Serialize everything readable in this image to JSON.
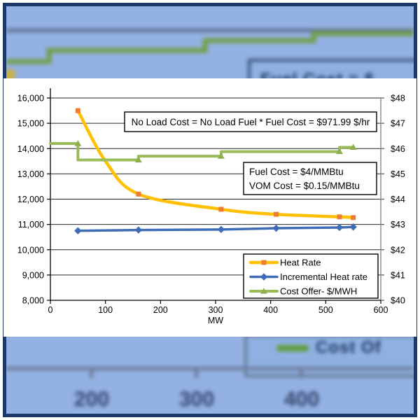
{
  "colors": {
    "page_background": "#ffffff",
    "slide_background": "#93b1e2",
    "slide_frame": "#1b3969",
    "heat_rate_line": "#FFC000",
    "heat_rate_marker": "#ED7D31",
    "incremental_line": "#3E6DB5",
    "cost_offer_line": "#9BBB59",
    "gridline": "#262626"
  },
  "chart_data": {
    "type": "line",
    "title": "",
    "xlabel": "MW",
    "x_axis": {
      "min": 0,
      "max": 600,
      "label": "MW",
      "ticks": [
        {
          "value": 0,
          "label": "0"
        },
        {
          "value": 100,
          "label": "100"
        },
        {
          "value": 200,
          "label": "200"
        },
        {
          "value": 300,
          "label": "300"
        },
        {
          "value": 400,
          "label": "400"
        },
        {
          "value": 500,
          "label": "500"
        },
        {
          "value": 600,
          "label": "600"
        }
      ]
    },
    "left_axis": {
      "min": 8000,
      "max": 16000,
      "ticks": [
        {
          "value": 16000,
          "label": "16,000"
        },
        {
          "value": 15000,
          "label": "15,000"
        },
        {
          "value": 14000,
          "label": "14,000"
        },
        {
          "value": 13000,
          "label": "13,000"
        },
        {
          "value": 12000,
          "label": "12,000"
        },
        {
          "value": 11000,
          "label": "11,000"
        },
        {
          "value": 10000,
          "label": "10,000"
        },
        {
          "value": 9000,
          "label": "9,000"
        },
        {
          "value": 8000,
          "label": "8,000"
        }
      ]
    },
    "right_axis": {
      "min": 40,
      "max": 48,
      "ticks": [
        {
          "value": 48,
          "label": "$48"
        },
        {
          "value": 47,
          "label": "$47"
        },
        {
          "value": 46,
          "label": "$46"
        },
        {
          "value": 45,
          "label": "$45"
        },
        {
          "value": 44,
          "label": "$44"
        },
        {
          "value": 43,
          "label": "$43"
        },
        {
          "value": 42,
          "label": "$42"
        },
        {
          "value": 41,
          "label": "$41"
        },
        {
          "value": 40,
          "label": "$40"
        }
      ]
    },
    "series": [
      {
        "name": "Heat Rate",
        "axis": "left",
        "color": "#FFC000",
        "line_width": 4.5,
        "marker": "square",
        "marker_color": "#ED7D31",
        "smooth": true,
        "points": [
          [
            50,
            15500
          ],
          [
            100,
            13500
          ],
          [
            160,
            12200
          ],
          [
            310,
            11600
          ],
          [
            410,
            11400
          ],
          [
            525,
            11300
          ],
          [
            550,
            11270
          ]
        ],
        "marker_points": [
          [
            50,
            15500
          ],
          [
            160,
            12200
          ],
          [
            310,
            11600
          ],
          [
            410,
            11400
          ],
          [
            525,
            11300
          ],
          [
            550,
            11270
          ]
        ]
      },
      {
        "name": "Incremental Heat rate",
        "axis": "left",
        "color": "#3E6DB5",
        "line_width": 3.5,
        "marker": "diamond",
        "marker_color": "#3E6DB5",
        "smooth": false,
        "points": [
          [
            50,
            10750
          ],
          [
            160,
            10780
          ],
          [
            310,
            10800
          ],
          [
            410,
            10850
          ],
          [
            525,
            10880
          ],
          [
            550,
            10900
          ]
        ],
        "marker_points": [
          [
            50,
            10750
          ],
          [
            160,
            10780
          ],
          [
            310,
            10800
          ],
          [
            410,
            10850
          ],
          [
            525,
            10880
          ],
          [
            550,
            10900
          ]
        ]
      },
      {
        "name": "Cost Offer- $/MWH",
        "axis": "right",
        "color": "#9BBB59",
        "line_width": 4,
        "marker": "triangle",
        "marker_color": "#8FAF4C",
        "smooth": false,
        "points": [
          [
            0,
            46.2
          ],
          [
            50,
            46.2
          ],
          [
            50,
            45.55
          ],
          [
            160,
            45.55
          ],
          [
            160,
            45.7
          ],
          [
            310,
            45.7
          ],
          [
            310,
            45.88
          ],
          [
            525,
            45.88
          ],
          [
            525,
            46.05
          ],
          [
            550,
            46.05
          ]
        ],
        "marker_points": [
          [
            50,
            46.2
          ],
          [
            160,
            45.55
          ],
          [
            310,
            45.7
          ],
          [
            525,
            45.88
          ],
          [
            550,
            46.05
          ]
        ]
      }
    ],
    "annotations": [
      {
        "id": "no-load-cost-note",
        "lines": [
          "No Load Cost = No Load Fuel * Fuel Cost = $971.99 $/hr"
        ]
      },
      {
        "id": "fuel-vom-cost-note",
        "lines": [
          "Fuel Cost = $4/MMBtu",
          "VOM Cost = $0.15/MMBtu"
        ]
      }
    ],
    "legend": {
      "position": "bottom-right-inside",
      "entries": [
        "Heat Rate",
        "Incremental Heat rate",
        "Cost Offer- $/MWH"
      ]
    },
    "grid": true
  },
  "background": {
    "x_axis_labels": [
      "200",
      "300",
      "400"
    ],
    "top_callout_text": "Fuel Cost = $",
    "bottom_legend_text": "Cost Of"
  }
}
